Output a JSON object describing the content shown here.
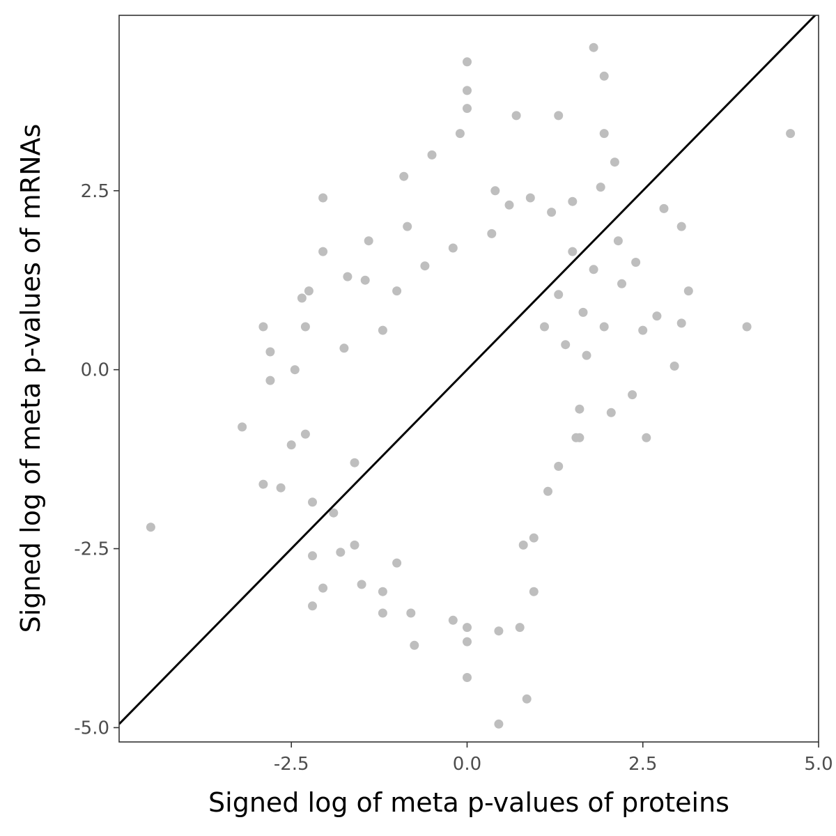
{
  "chart_data": {
    "type": "scatter",
    "xlabel": "Signed log of meta p-values of proteins",
    "ylabel": "Signed log of meta p-values of mRNAs",
    "xlim": [
      -4.95,
      5.0
    ],
    "ylim": [
      -5.2,
      4.95
    ],
    "x_ticks": [
      -2.5,
      0.0,
      2.5,
      5.0
    ],
    "x_tick_labels": [
      "-2.5",
      "0.0",
      "2.5",
      "5.0"
    ],
    "y_ticks": [
      -5.0,
      -2.5,
      0.0,
      2.5
    ],
    "y_tick_labels": [
      "-5.0",
      "-2.5",
      "0.0",
      "2.5"
    ],
    "grid": false,
    "point_color": "#bebebe",
    "line_color": "#000000",
    "reference_line": {
      "slope": 1,
      "intercept": 0
    },
    "points": [
      [
        -4.5,
        -2.2
      ],
      [
        -3.2,
        -0.8
      ],
      [
        -2.9,
        0.6
      ],
      [
        -2.8,
        0.25
      ],
      [
        -2.8,
        -0.15
      ],
      [
        -2.9,
        -1.6
      ],
      [
        -2.65,
        -1.65
      ],
      [
        -2.5,
        -1.05
      ],
      [
        -2.45,
        0.0
      ],
      [
        -2.35,
        1.0
      ],
      [
        -2.25,
        1.1
      ],
      [
        -2.3,
        0.6
      ],
      [
        -2.05,
        2.4
      ],
      [
        -2.05,
        1.65
      ],
      [
        -2.2,
        -1.85
      ],
      [
        -2.2,
        -3.3
      ],
      [
        -2.2,
        -2.6
      ],
      [
        -2.05,
        -3.05
      ],
      [
        -1.7,
        1.3
      ],
      [
        -1.4,
        1.8
      ],
      [
        -1.45,
        1.25
      ],
      [
        -0.85,
        2.0
      ],
      [
        -0.9,
        2.7
      ],
      [
        -0.5,
        3.0
      ],
      [
        -0.1,
        3.3
      ],
      [
        0.0,
        4.3
      ],
      [
        0.0,
        3.9
      ],
      [
        0.0,
        3.65
      ],
      [
        0.7,
        3.55
      ],
      [
        1.3,
        3.55
      ],
      [
        1.8,
        4.5
      ],
      [
        1.95,
        4.1
      ],
      [
        1.95,
        3.3
      ],
      [
        4.6,
        3.3
      ],
      [
        2.8,
        2.25
      ],
      [
        3.05,
        2.0
      ],
      [
        3.15,
        1.1
      ],
      [
        2.7,
        0.75
      ],
      [
        3.05,
        0.65
      ],
      [
        2.5,
        0.55
      ],
      [
        2.95,
        0.05
      ],
      [
        3.98,
        0.6
      ],
      [
        2.55,
        -0.95
      ],
      [
        2.35,
        -0.35
      ],
      [
        2.05,
        -0.6
      ],
      [
        1.6,
        -0.55
      ],
      [
        1.55,
        -0.95
      ],
      [
        -1.5,
        -3.0
      ],
      [
        -1.2,
        -3.1
      ],
      [
        -1.2,
        -3.4
      ],
      [
        -0.8,
        -3.4
      ],
      [
        -0.75,
        -3.85
      ],
      [
        -0.2,
        -3.5
      ],
      [
        0.0,
        -3.6
      ],
      [
        0.0,
        -3.8
      ],
      [
        0.0,
        -4.3
      ],
      [
        0.45,
        -3.65
      ],
      [
        0.75,
        -3.6
      ],
      [
        0.85,
        -4.6
      ],
      [
        0.45,
        -4.95
      ],
      [
        0.95,
        -3.1
      ],
      [
        0.95,
        -2.35
      ],
      [
        0.8,
        -2.45
      ],
      [
        1.15,
        -1.7
      ],
      [
        1.3,
        -1.35
      ],
      [
        1.6,
        -0.95
      ],
      [
        -1.6,
        -2.45
      ],
      [
        -1.8,
        -2.55
      ],
      [
        -1.0,
        -2.7
      ],
      [
        -1.6,
        -1.3
      ],
      [
        -1.9,
        -2.0
      ],
      [
        -2.3,
        -0.9
      ],
      [
        -1.75,
        0.3
      ],
      [
        -1.2,
        0.55
      ],
      [
        -1.0,
        1.1
      ],
      [
        -0.6,
        1.45
      ],
      [
        -0.2,
        1.7
      ],
      [
        0.35,
        1.9
      ],
      [
        0.4,
        2.5
      ],
      [
        0.6,
        2.3
      ],
      [
        0.9,
        2.4
      ],
      [
        1.2,
        2.2
      ],
      [
        1.5,
        2.35
      ],
      [
        1.9,
        2.55
      ],
      [
        2.1,
        2.9
      ],
      [
        2.15,
        1.8
      ],
      [
        2.4,
        1.5
      ],
      [
        2.2,
        1.2
      ],
      [
        1.8,
        1.4
      ],
      [
        1.5,
        1.65
      ],
      [
        1.3,
        1.05
      ],
      [
        1.65,
        0.8
      ],
      [
        1.95,
        0.6
      ],
      [
        1.7,
        0.2
      ],
      [
        1.4,
        0.35
      ],
      [
        1.1,
        0.6
      ]
    ]
  }
}
